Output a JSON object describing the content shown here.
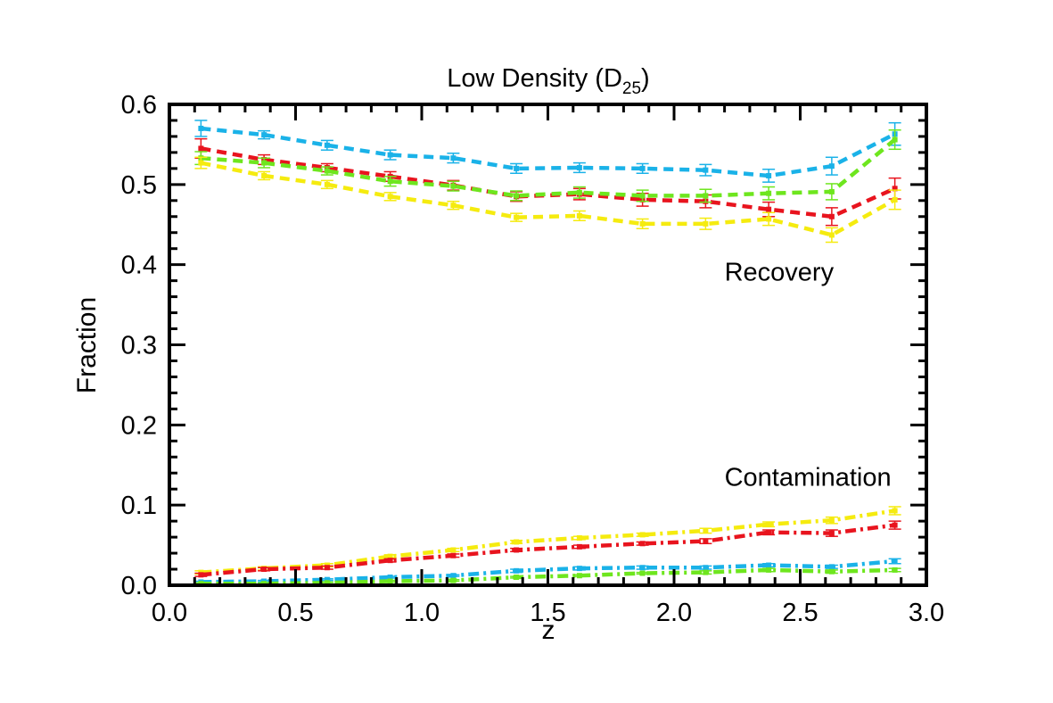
{
  "chart_data": {
    "type": "line",
    "title": "Low Density (D",
    "title_sub": "25",
    "title_end": ")",
    "xlabel": "z",
    "ylabel": "Fraction",
    "xlim": [
      0.0,
      3.0
    ],
    "ylim": [
      0.0,
      0.6
    ],
    "xticks": [
      "0.0",
      "0.5",
      "1.0",
      "1.5",
      "2.0",
      "2.5",
      "3.0"
    ],
    "yticks": [
      "0.0",
      "0.1",
      "0.2",
      "0.3",
      "0.4",
      "0.5",
      "0.6"
    ],
    "annotations": [
      {
        "text": "Recovery",
        "x": 2.2,
        "y": 0.38
      },
      {
        "text": "Contamination",
        "x": 2.2,
        "y": 0.124
      }
    ],
    "x": [
      0.125,
      0.375,
      0.625,
      0.875,
      1.125,
      1.375,
      1.625,
      1.875,
      2.125,
      2.375,
      2.625,
      2.875
    ],
    "series": [
      {
        "name": "recovery-cyan",
        "color": "#1ab2e8",
        "style": "dash",
        "values": [
          0.57,
          0.562,
          0.549,
          0.537,
          0.533,
          0.52,
          0.521,
          0.52,
          0.518,
          0.511,
          0.523,
          0.563
        ],
        "errors": [
          0.01,
          0.005,
          0.006,
          0.006,
          0.006,
          0.006,
          0.006,
          0.006,
          0.007,
          0.008,
          0.011,
          0.014
        ]
      },
      {
        "name": "recovery-red",
        "color": "#e8141e",
        "style": "dash",
        "values": [
          0.545,
          0.531,
          0.521,
          0.51,
          0.499,
          0.485,
          0.488,
          0.481,
          0.479,
          0.469,
          0.46,
          0.495
        ],
        "errors": [
          0.012,
          0.006,
          0.005,
          0.006,
          0.006,
          0.006,
          0.007,
          0.008,
          0.008,
          0.009,
          0.011,
          0.013
        ]
      },
      {
        "name": "recovery-green",
        "color": "#6ee61e",
        "style": "dash",
        "values": [
          0.533,
          0.527,
          0.517,
          0.504,
          0.498,
          0.486,
          0.49,
          0.486,
          0.486,
          0.489,
          0.491,
          0.556
        ],
        "errors": [
          0.008,
          0.006,
          0.005,
          0.006,
          0.006,
          0.006,
          0.007,
          0.007,
          0.008,
          0.008,
          0.01,
          0.012
        ]
      },
      {
        "name": "recovery-yellow",
        "color": "#f5eb0f",
        "style": "dash",
        "values": [
          0.527,
          0.511,
          0.5,
          0.485,
          0.474,
          0.459,
          0.461,
          0.451,
          0.451,
          0.457,
          0.437,
          0.481
        ],
        "errors": [
          0.007,
          0.005,
          0.005,
          0.005,
          0.005,
          0.005,
          0.006,
          0.006,
          0.007,
          0.008,
          0.009,
          0.012
        ]
      },
      {
        "name": "contamination-yellow",
        "color": "#f5eb0f",
        "style": "dashdot",
        "values": [
          0.016,
          0.021,
          0.025,
          0.036,
          0.044,
          0.054,
          0.059,
          0.063,
          0.068,
          0.076,
          0.081,
          0.093
        ],
        "errors": [
          0.002,
          0.002,
          0.002,
          0.002,
          0.002,
          0.002,
          0.002,
          0.002,
          0.003,
          0.003,
          0.004,
          0.005
        ]
      },
      {
        "name": "contamination-red",
        "color": "#e8141e",
        "style": "dashdot",
        "values": [
          0.013,
          0.02,
          0.022,
          0.031,
          0.037,
          0.044,
          0.048,
          0.052,
          0.055,
          0.066,
          0.065,
          0.075
        ],
        "errors": [
          0.002,
          0.002,
          0.002,
          0.002,
          0.002,
          0.002,
          0.002,
          0.002,
          0.003,
          0.003,
          0.004,
          0.005
        ]
      },
      {
        "name": "contamination-cyan",
        "color": "#1ab2e8",
        "style": "dashdot",
        "values": [
          0.004,
          0.005,
          0.007,
          0.01,
          0.012,
          0.018,
          0.021,
          0.022,
          0.022,
          0.025,
          0.023,
          0.03
        ],
        "errors": [
          0.001,
          0.001,
          0.001,
          0.001,
          0.001,
          0.002,
          0.002,
          0.002,
          0.002,
          0.002,
          0.002,
          0.003
        ]
      },
      {
        "name": "contamination-green",
        "color": "#6ee61e",
        "style": "dashdot",
        "values": [
          0.002,
          0.002,
          0.003,
          0.005,
          0.006,
          0.01,
          0.012,
          0.015,
          0.016,
          0.019,
          0.017,
          0.019
        ],
        "errors": [
          0.001,
          0.001,
          0.001,
          0.001,
          0.001,
          0.001,
          0.001,
          0.001,
          0.002,
          0.002,
          0.002,
          0.002
        ]
      }
    ]
  }
}
